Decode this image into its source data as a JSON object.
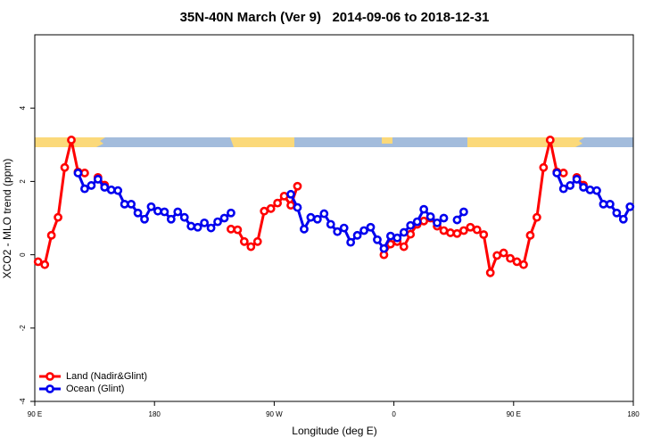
{
  "chart_data": {
    "type": "line",
    "title": "35N-40N March (Ver 9)   2014-09-06 to 2018-12-31",
    "x_label": "Longitude (deg E)",
    "y_label": "XCO2 - MLO trend (ppm)",
    "x": [
      92.5,
      97.5,
      102.5,
      107.5,
      112.5,
      117.5,
      122.5,
      127.5,
      132.5,
      137.5,
      142.5,
      147.5,
      152.5,
      157.5,
      162.5,
      167.5,
      172.5,
      177.5,
      182.5,
      187.5,
      192.5,
      197.5,
      202.5,
      207.5,
      212.5,
      217.5,
      222.5,
      227.5,
      232.5,
      237.5,
      242.5,
      247.5,
      252.5,
      257.5,
      262.5,
      267.5,
      272.5,
      277.5,
      282.5,
      287.5,
      292.5,
      297.5,
      302.5,
      307.5,
      312.5,
      317.5,
      322.5,
      327.5,
      332.5,
      337.5,
      342.5,
      347.5,
      352.5,
      357.5,
      362.5,
      367.5,
      372.5,
      377.5,
      382.5,
      387.5,
      392.5,
      397.5,
      402.5,
      407.5,
      412.5,
      417.5,
      422.5,
      427.5,
      432.5,
      437.5,
      442.5,
      447.5,
      452.5,
      457.5,
      462.5,
      467.5,
      472.5,
      477.5,
      482.5,
      487.5,
      492.5,
      497.5,
      502.5,
      507.5,
      512.5,
      517.5,
      522.5,
      527.5,
      532.5,
      537.5
    ],
    "series": [
      {
        "name": "Land (Nadir&Glint)",
        "color": "#ff0000",
        "values": [
          -0.19,
          -0.27,
          0.53,
          1.02,
          2.38,
          3.13,
          2.26,
          2.23,
          null,
          2.11,
          1.9,
          null,
          null,
          null,
          null,
          null,
          null,
          null,
          null,
          null,
          null,
          null,
          null,
          null,
          null,
          null,
          null,
          null,
          null,
          0.7,
          0.68,
          0.36,
          0.22,
          0.36,
          1.19,
          1.26,
          1.41,
          1.6,
          1.35,
          1.87,
          null,
          null,
          null,
          null,
          null,
          null,
          null,
          null,
          null,
          null,
          null,
          null,
          0.0,
          0.29,
          0.36,
          0.22,
          0.56,
          0.83,
          0.92,
          1.0,
          0.78,
          0.66,
          0.6,
          0.58,
          0.66,
          0.75,
          0.68,
          0.55,
          -0.49,
          -0.02,
          0.05,
          -0.1,
          -0.19,
          -0.27,
          0.53,
          1.02,
          2.38,
          3.13,
          2.26,
          2.23,
          null,
          2.11,
          1.9,
          null,
          null,
          null,
          null,
          null,
          null,
          null
        ]
      },
      {
        "name": "Ocean (Glint)",
        "color": "#0000ee",
        "values": [
          null,
          null,
          null,
          null,
          null,
          null,
          2.23,
          1.8,
          1.89,
          2.06,
          1.84,
          1.77,
          1.75,
          1.38,
          1.38,
          1.14,
          0.97,
          1.31,
          1.19,
          1.17,
          0.97,
          1.17,
          1.02,
          0.78,
          0.75,
          0.87,
          0.73,
          0.9,
          1.0,
          1.14,
          null,
          null,
          null,
          null,
          null,
          null,
          null,
          null,
          1.65,
          1.29,
          0.7,
          1.02,
          0.97,
          1.12,
          0.83,
          0.63,
          0.73,
          0.34,
          0.53,
          0.66,
          0.75,
          0.41,
          0.17,
          0.51,
          0.46,
          0.61,
          0.8,
          0.9,
          1.24,
          1.04,
          0.87,
          1.0,
          null,
          0.95,
          1.17,
          null,
          null,
          null,
          null,
          null,
          null,
          null,
          null,
          null,
          null,
          null,
          null,
          null,
          2.23,
          1.8,
          1.89,
          2.06,
          1.84,
          1.77,
          1.75,
          1.38,
          1.38,
          1.14,
          0.97,
          1.31
        ]
      }
    ],
    "xlim": [
      90,
      540
    ],
    "xticks": [
      {
        "value": 90,
        "label": "90 E"
      },
      {
        "value": 180,
        "label": "180"
      },
      {
        "value": 270,
        "label": "90 W"
      },
      {
        "value": 360,
        "label": "0"
      },
      {
        "value": 450,
        "label": "90 E"
      },
      {
        "value": 540,
        "label": "180"
      }
    ],
    "ylim": [
      -4,
      6
    ],
    "yticks": [
      -4,
      -2,
      0,
      2,
      4
    ],
    "legend": "bottom-left"
  }
}
